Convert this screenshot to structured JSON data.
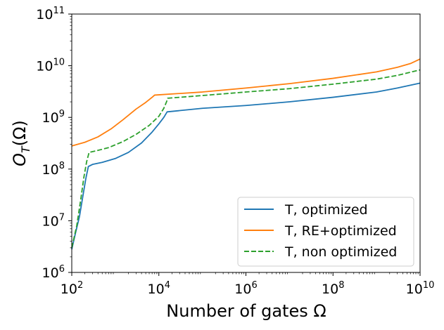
{
  "chart_data": {
    "type": "line",
    "xscale": "log",
    "yscale": "log",
    "xlim": [
      100,
      10000000000
    ],
    "ylim": [
      1000000,
      100000000000
    ],
    "xlabel": "Number of gates Ω",
    "ylabel": {
      "main": "O",
      "sub": "T",
      "arg": "(Ω)"
    },
    "x_ticks": [
      {
        "value": 100,
        "base": "10",
        "exp": "2"
      },
      {
        "value": 10000,
        "base": "10",
        "exp": "4"
      },
      {
        "value": 1000000,
        "base": "10",
        "exp": "6"
      },
      {
        "value": 100000000,
        "base": "10",
        "exp": "8"
      },
      {
        "value": 10000000000,
        "base": "10",
        "exp": "10"
      }
    ],
    "y_ticks": [
      {
        "value": 1000000,
        "base": "10",
        "exp": "6"
      },
      {
        "value": 10000000,
        "base": "10",
        "exp": "7"
      },
      {
        "value": 100000000,
        "base": "10",
        "exp": "8"
      },
      {
        "value": 1000000000,
        "base": "10",
        "exp": "9"
      },
      {
        "value": 10000000000,
        "base": "10",
        "exp": "10"
      },
      {
        "value": 100000000000,
        "base": "10",
        "exp": "11"
      }
    ],
    "legend_position": "lower-right",
    "series": [
      {
        "name": "T, optimized",
        "color": "#1f77b4",
        "style": "solid",
        "points": [
          [
            100,
            2800000
          ],
          [
            120,
            5500000
          ],
          [
            150,
            12000000
          ],
          [
            180,
            30000000
          ],
          [
            210,
            65000000
          ],
          [
            240,
            112000000
          ],
          [
            300,
            123000000
          ],
          [
            500,
            135000000
          ],
          [
            1000,
            160000000
          ],
          [
            2000,
            210000000
          ],
          [
            4000,
            320000000
          ],
          [
            7000,
            520000000
          ],
          [
            10000,
            750000000
          ],
          [
            13000,
            1000000000
          ],
          [
            15500,
            1280000000
          ],
          [
            100000,
            1500000000
          ],
          [
            1000000,
            1700000000
          ],
          [
            10000000,
            2000000000
          ],
          [
            100000000,
            2450000000
          ],
          [
            1000000000,
            3100000000
          ],
          [
            3000000000,
            3700000000
          ],
          [
            10000000000,
            4600000000
          ]
        ]
      },
      {
        "name": "T, RE+optimized",
        "color": "#ff7f0e",
        "style": "solid",
        "points": [
          [
            100,
            280000000
          ],
          [
            200,
            330000000
          ],
          [
            400,
            420000000
          ],
          [
            800,
            600000000
          ],
          [
            1500,
            900000000
          ],
          [
            3000,
            1450000000
          ],
          [
            5000,
            1950000000
          ],
          [
            7000,
            2450000000
          ],
          [
            8000,
            2700000000
          ],
          [
            100000,
            3100000000
          ],
          [
            1000000,
            3700000000
          ],
          [
            10000000,
            4500000000
          ],
          [
            100000000,
            5700000000
          ],
          [
            1000000000,
            7600000000
          ],
          [
            3000000000,
            9300000000
          ],
          [
            6000000000,
            11000000000
          ],
          [
            10000000000,
            13500000000
          ]
        ]
      },
      {
        "name": "T, non optimized",
        "color": "#2ca02c",
        "style": "dashed",
        "points": [
          [
            100,
            3000000
          ],
          [
            130,
            8000000
          ],
          [
            160,
            25000000
          ],
          [
            190,
            70000000
          ],
          [
            220,
            140000000
          ],
          [
            250,
            210000000
          ],
          [
            400,
            230000000
          ],
          [
            700,
            260000000
          ],
          [
            1500,
            340000000
          ],
          [
            3000,
            470000000
          ],
          [
            6000,
            700000000
          ],
          [
            10000,
            1050000000
          ],
          [
            13000,
            1500000000
          ],
          [
            15000,
            2000000000
          ],
          [
            16000,
            2350000000
          ],
          [
            100000,
            2650000000
          ],
          [
            1000000,
            3100000000
          ],
          [
            10000000,
            3600000000
          ],
          [
            100000000,
            4400000000
          ],
          [
            1000000000,
            5500000000
          ],
          [
            3000000000,
            6500000000
          ],
          [
            10000000000,
            8300000000
          ]
        ]
      }
    ]
  }
}
